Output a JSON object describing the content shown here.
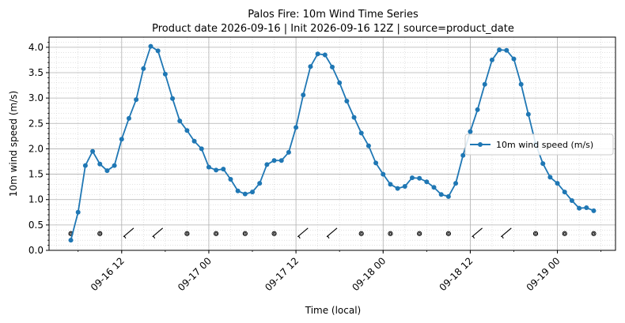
{
  "chart_data": {
    "type": "line",
    "title": "Palos Fire: 10m Wind Time Series",
    "subtitle": "Product date 2026-09-16 | Init 2026-09-16 12Z | source=product_date",
    "xlabel": "Time (local)",
    "ylabel": "10m wind speed (m/s)",
    "ylim": [
      0.0,
      4.2
    ],
    "xlim": [
      "2026-09-16 02:00",
      "2026-09-19 08:00"
    ],
    "y_ticks": [
      "0.0",
      "0.5",
      "1.0",
      "1.5",
      "2.0",
      "2.5",
      "3.0",
      "3.5",
      "4.0"
    ],
    "x_ticks": [
      "09-16 12",
      "09-17 00",
      "09-17 12",
      "09-18 00",
      "09-18 12",
      "09-19 00"
    ],
    "x_tick_times": [
      "2026-09-16 12:00",
      "2026-09-17 00:00",
      "2026-09-17 12:00",
      "2026-09-18 00:00",
      "2026-09-18 12:00",
      "2026-09-19 00:00"
    ],
    "grid": true,
    "legend_position": "center-right",
    "color": "#1f77b4",
    "series": [
      {
        "name": "10m wind speed (m/s)",
        "x": [
          "2026-09-16 05:00",
          "2026-09-16 06:00",
          "2026-09-16 07:00",
          "2026-09-16 08:00",
          "2026-09-16 09:00",
          "2026-09-16 10:00",
          "2026-09-16 11:00",
          "2026-09-16 12:00",
          "2026-09-16 13:00",
          "2026-09-16 14:00",
          "2026-09-16 15:00",
          "2026-09-16 16:00",
          "2026-09-16 17:00",
          "2026-09-16 18:00",
          "2026-09-16 19:00",
          "2026-09-16 20:00",
          "2026-09-16 21:00",
          "2026-09-16 22:00",
          "2026-09-16 23:00",
          "2026-09-17 00:00",
          "2026-09-17 01:00",
          "2026-09-17 02:00",
          "2026-09-17 03:00",
          "2026-09-17 04:00",
          "2026-09-17 05:00",
          "2026-09-17 06:00",
          "2026-09-17 07:00",
          "2026-09-17 08:00",
          "2026-09-17 09:00",
          "2026-09-17 10:00",
          "2026-09-17 11:00",
          "2026-09-17 12:00",
          "2026-09-17 13:00",
          "2026-09-17 14:00",
          "2026-09-17 15:00",
          "2026-09-17 16:00",
          "2026-09-17 17:00",
          "2026-09-17 18:00",
          "2026-09-17 19:00",
          "2026-09-17 20:00",
          "2026-09-17 21:00",
          "2026-09-17 22:00",
          "2026-09-17 23:00",
          "2026-09-18 00:00",
          "2026-09-18 01:00",
          "2026-09-18 02:00",
          "2026-09-18 03:00",
          "2026-09-18 04:00",
          "2026-09-18 05:00",
          "2026-09-18 06:00",
          "2026-09-18 07:00",
          "2026-09-18 08:00",
          "2026-09-18 09:00",
          "2026-09-18 10:00",
          "2026-09-18 11:00",
          "2026-09-18 12:00",
          "2026-09-18 13:00",
          "2026-09-18 14:00",
          "2026-09-18 15:00",
          "2026-09-18 16:00",
          "2026-09-18 17:00",
          "2026-09-18 18:00",
          "2026-09-18 19:00",
          "2026-09-18 20:00",
          "2026-09-18 21:00",
          "2026-09-18 22:00",
          "2026-09-18 23:00",
          "2026-09-19 00:00",
          "2026-09-19 01:00",
          "2026-09-19 02:00",
          "2026-09-19 03:00",
          "2026-09-19 04:00",
          "2026-09-19 05:00"
        ],
        "values": [
          0.2,
          0.75,
          1.67,
          1.95,
          1.7,
          1.57,
          1.67,
          2.19,
          2.6,
          2.97,
          3.58,
          4.02,
          3.93,
          3.47,
          2.99,
          2.55,
          2.36,
          2.15,
          2.0,
          1.64,
          1.58,
          1.6,
          1.4,
          1.17,
          1.11,
          1.15,
          1.32,
          1.69,
          1.77,
          1.77,
          1.93,
          2.42,
          3.06,
          3.62,
          3.87,
          3.85,
          3.61,
          3.3,
          2.94,
          2.62,
          2.31,
          2.06,
          1.72,
          1.5,
          1.3,
          1.22,
          1.26,
          1.43,
          1.42,
          1.35,
          1.24,
          1.1,
          1.06,
          1.32,
          1.87,
          2.34,
          2.77,
          3.27,
          3.75,
          3.95,
          3.94,
          3.77,
          3.27,
          2.68,
          2.1,
          1.71,
          1.44,
          1.32,
          1.15,
          0.98,
          0.83,
          0.84,
          0.78
        ]
      }
    ],
    "wind_barbs": {
      "y": 0.33,
      "times": [
        "2026-09-16 05:00",
        "2026-09-16 09:00",
        "2026-09-16 13:00",
        "2026-09-16 17:00",
        "2026-09-16 21:00",
        "2026-09-17 01:00",
        "2026-09-17 05:00",
        "2026-09-17 09:00",
        "2026-09-17 13:00",
        "2026-09-17 17:00",
        "2026-09-17 21:00",
        "2026-09-18 01:00",
        "2026-09-18 05:00",
        "2026-09-18 09:00",
        "2026-09-18 13:00",
        "2026-09-18 17:00",
        "2026-09-18 21:00",
        "2026-09-19 01:00",
        "2026-09-19 05:00"
      ],
      "kind": [
        "calm",
        "calm",
        "barb",
        "barb",
        "calm",
        "calm",
        "calm",
        "calm",
        "barb",
        "barb",
        "calm",
        "calm",
        "calm",
        "calm",
        "barb",
        "barb",
        "calm",
        "calm",
        "calm"
      ]
    }
  }
}
